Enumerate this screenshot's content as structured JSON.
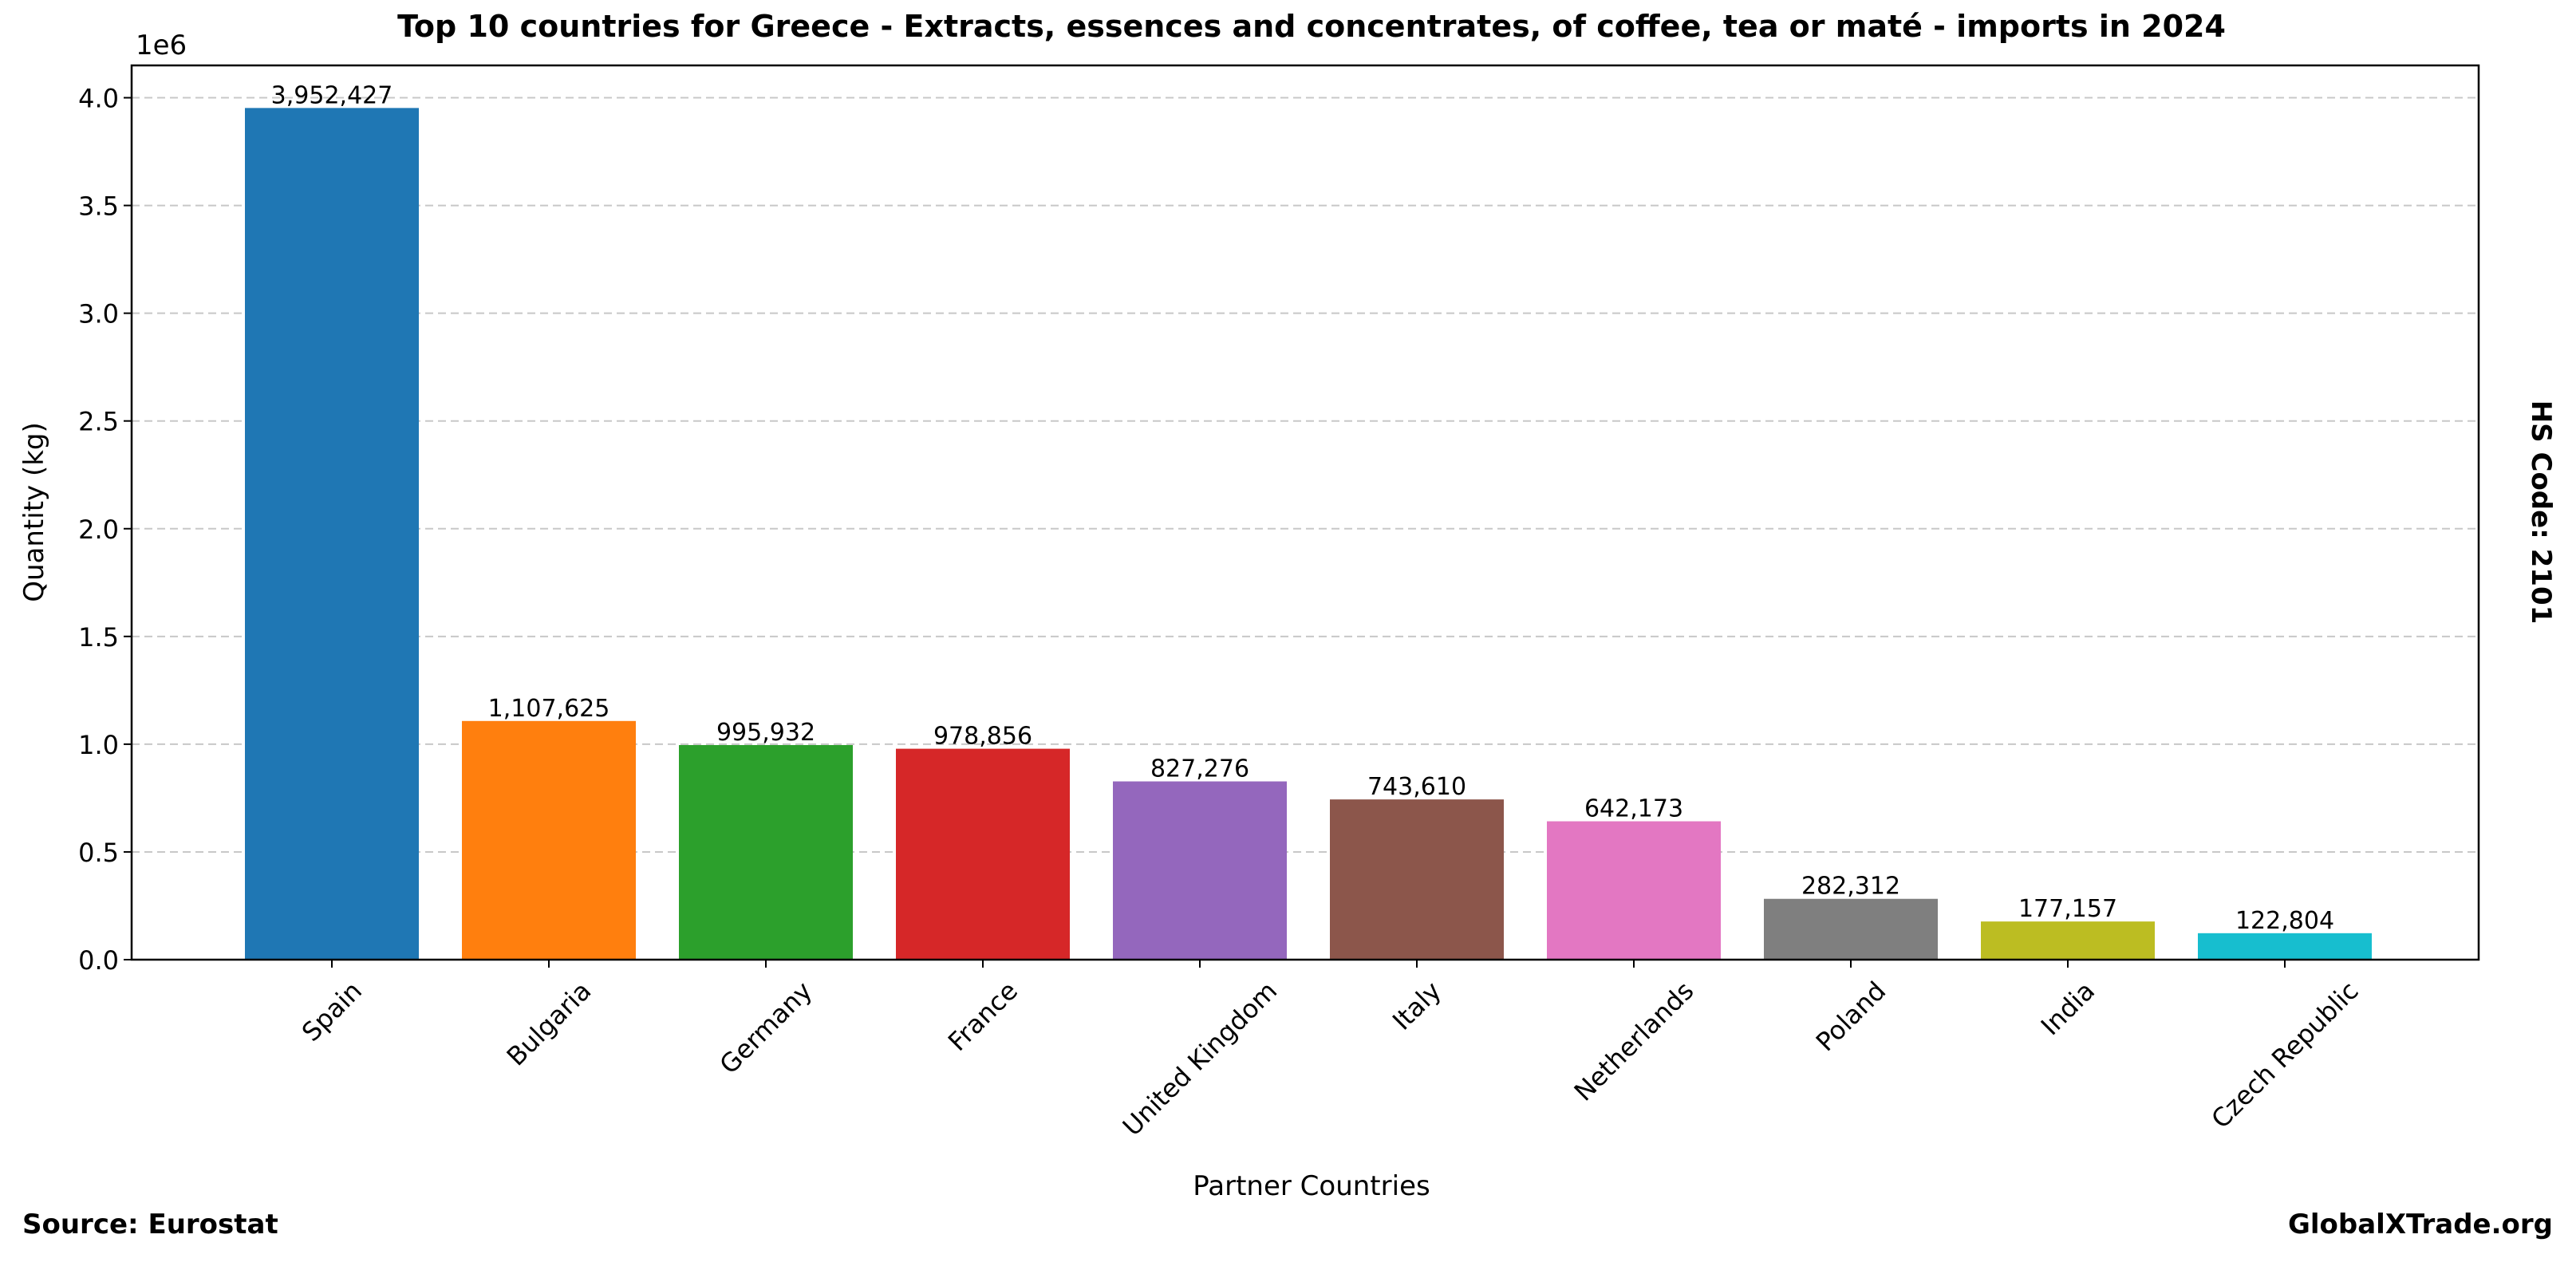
{
  "chart_data": {
    "type": "bar",
    "title": "Top 10 countries for Greece - Extracts, essences and concentrates, of coffee, tea or maté - imports in 2024",
    "x_label": "Partner Countries",
    "y_label": "Quantity (kg)",
    "y_offset_label": "1e6",
    "side_note": "HS Code: 2101",
    "source": "Source: Eurostat",
    "watermark": "GlobalXTrade.org",
    "categories": [
      "Spain",
      "Bulgaria",
      "Germany",
      "France",
      "United Kingdom",
      "Italy",
      "Netherlands",
      "Poland",
      "India",
      "Czech Republic"
    ],
    "values": [
      3952427,
      1107625,
      995932,
      978856,
      827276,
      743610,
      642173,
      282312,
      177157,
      122804
    ],
    "value_labels": [
      "3,952,427",
      "1,107,625",
      "995,932",
      "978,856",
      "827,276",
      "743,610",
      "642,173",
      "282,312",
      "177,157",
      "122,804"
    ],
    "colors": [
      "#1f77b4",
      "#ff7f0e",
      "#2ca02c",
      "#d62728",
      "#9467bd",
      "#8c564b",
      "#e377c2",
      "#7f7f7f",
      "#bcbd22",
      "#17becf"
    ],
    "ylim": [
      0,
      4150000
    ],
    "yticks": [
      {
        "value": 0,
        "label": "0.0"
      },
      {
        "value": 500000,
        "label": "0.5"
      },
      {
        "value": 1000000,
        "label": "1.0"
      },
      {
        "value": 1500000,
        "label": "1.5"
      },
      {
        "value": 2000000,
        "label": "2.0"
      },
      {
        "value": 2500000,
        "label": "2.5"
      },
      {
        "value": 3000000,
        "label": "3.0"
      },
      {
        "value": 3500000,
        "label": "3.5"
      },
      {
        "value": 4000000,
        "label": "4.0"
      }
    ],
    "grid": true
  }
}
